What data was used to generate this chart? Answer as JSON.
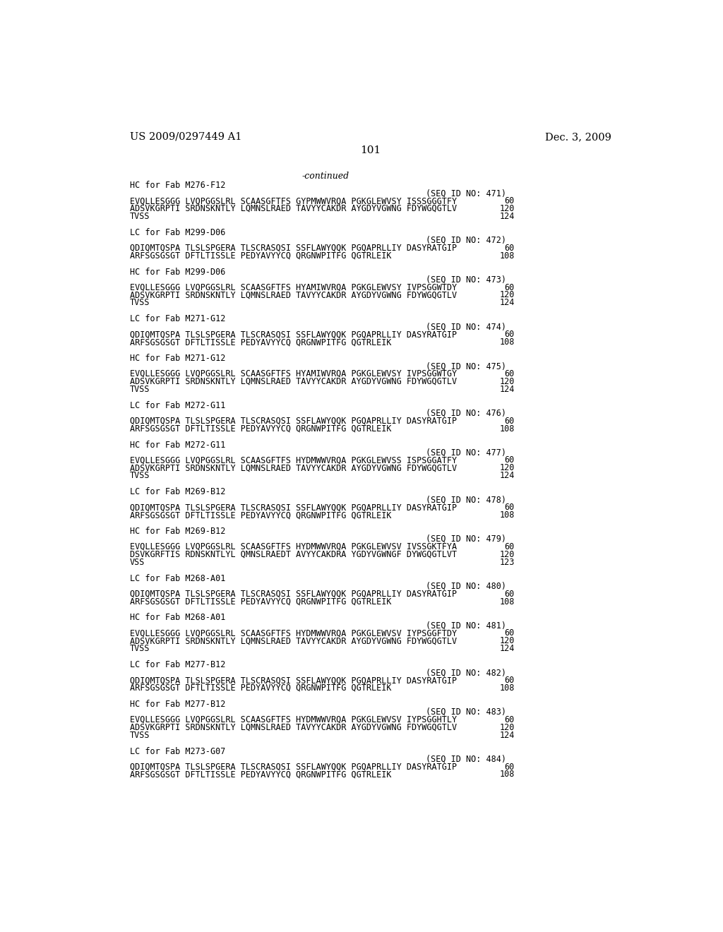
{
  "background_color": "#ffffff",
  "header_left": "US 2009/0297449 A1",
  "header_right": "Dec. 3, 2009",
  "page_number": "101",
  "continued_text": "-continued",
  "lines": [
    {
      "type": "section",
      "text": "HC for Fab M276-F12"
    },
    {
      "type": "seqid",
      "text": "(SEQ ID NO: 471)"
    },
    {
      "type": "seq",
      "text": "EVQLLESGGG LVQPGGSLRL SCAASGFTFS GYPMWWVRQA PGKGLEWVSY ISSSGGGTFY",
      "num": "60"
    },
    {
      "type": "seq",
      "text": "ADSVKGRPTI SRDNSKNTLY LQMNSLRAED TAVYYCAKDR AYGDYVGWNG FDYWGQGTLV",
      "num": "120"
    },
    {
      "type": "seq",
      "text": "TVSS",
      "num": "124"
    },
    {
      "type": "blank"
    },
    {
      "type": "section",
      "text": "LC for Fab M299-D06"
    },
    {
      "type": "seqid",
      "text": "(SEQ ID NO: 472)"
    },
    {
      "type": "seq",
      "text": "QDIQMTQSPA TLSLSPGERA TLSCRASQSI SSFLAWYQQK PGQAPRLLIY DASYRATGIP",
      "num": "60"
    },
    {
      "type": "seq",
      "text": "ARFSGSGSGT DFTLTISSLE PEDYAVYYCQ QRGNWPITFG QGTRLEIK",
      "num": "108"
    },
    {
      "type": "blank"
    },
    {
      "type": "section",
      "text": "HC for Fab M299-D06"
    },
    {
      "type": "seqid",
      "text": "(SEQ ID NO: 473)"
    },
    {
      "type": "seq",
      "text": "EVQLLESGGG LVQPGGSLRL SCAASGFTFS HYAMIWVRQA PGKGLEWVSY IVPSGGWTDY",
      "num": "60"
    },
    {
      "type": "seq",
      "text": "ADSVKGRPTI SRDNSKNTLY LQMNSLRAED TAVYYCAKDR AYGDYVGWNG FDYWGQGTLV",
      "num": "120"
    },
    {
      "type": "seq",
      "text": "TVSS",
      "num": "124"
    },
    {
      "type": "blank"
    },
    {
      "type": "section",
      "text": "LC for Fab M271-G12"
    },
    {
      "type": "seqid",
      "text": "(SEQ ID NO: 474)"
    },
    {
      "type": "seq",
      "text": "QDIQMTQSPA TLSLSPGERA TLSCRASQSI SSFLAWYQQK PGQAPRLLIY DASYRATGIP",
      "num": "60"
    },
    {
      "type": "seq",
      "text": "ARFSGSGSGT DFTLTISSLE PEDYAVYYCQ QRGNWPITFG QGTRLEIK",
      "num": "108"
    },
    {
      "type": "blank"
    },
    {
      "type": "section",
      "text": "HC for Fab M271-G12"
    },
    {
      "type": "seqid",
      "text": "(SEQ ID NO: 475)"
    },
    {
      "type": "seq",
      "text": "EVQLLESGGG LVQPGGSLRL SCAASGFTFS HYAMIWVRQA PGKGLEWVSY IVPSGGWTGY",
      "num": "60"
    },
    {
      "type": "seq",
      "text": "ADSVKGRPTI SRDNSKNTLY LQMNSLRAED TAVYYCAKDR AYGDYVGWNG FDYWGQGTLV",
      "num": "120"
    },
    {
      "type": "seq",
      "text": "TVSS",
      "num": "124"
    },
    {
      "type": "blank"
    },
    {
      "type": "section",
      "text": "LC for Fab M272-G11"
    },
    {
      "type": "seqid",
      "text": "(SEQ ID NO: 476)"
    },
    {
      "type": "seq",
      "text": "QDIQMTQSPA TLSLSPGERA TLSCRASQSI SSFLAWYQQK PGQAPRLLIY DASYRATGIP",
      "num": "60"
    },
    {
      "type": "seq",
      "text": "ARFSGSGSGT DFTLTISSLE PEDYAVYYCQ QRGNWPITFG QGTRLEIK",
      "num": "108"
    },
    {
      "type": "blank"
    },
    {
      "type": "section",
      "text": "HC for Fab M272-G11"
    },
    {
      "type": "seqid",
      "text": "(SEQ ID NO: 477)"
    },
    {
      "type": "seq",
      "text": "EVQLLESGGG LVQPGGSLRL SCAASGFTFS HYDMWWVRQA PGKGLEWVSS ISPSGGATFY",
      "num": "60"
    },
    {
      "type": "seq",
      "text": "ADSVKGRPTI SRDNSKNTLY LQMNSLRAED TAVYYCAKDR AYGDYVGWNG FDYWGQGTLV",
      "num": "120"
    },
    {
      "type": "seq",
      "text": "TVSS",
      "num": "124"
    },
    {
      "type": "blank"
    },
    {
      "type": "section",
      "text": "LC for Fab M269-B12"
    },
    {
      "type": "seqid",
      "text": "(SEQ ID NO: 478)"
    },
    {
      "type": "seq",
      "text": "QDIQMTQSPA TLSLSPGERA TLSCRASQSI SSFLAWYQQK PGQAPRLLIY DASYRATGIP",
      "num": "60"
    },
    {
      "type": "seq",
      "text": "ARFSGSGSGT DFTLTISSLE PEDYAVYYCQ QRGNWPITFG QGTRLEIK",
      "num": "108"
    },
    {
      "type": "blank"
    },
    {
      "type": "section",
      "text": "HC for Fab M269-B12"
    },
    {
      "type": "seqid",
      "text": "(SEQ ID NO: 479)"
    },
    {
      "type": "seq",
      "text": "EVQLLESGGG LVQPGGSLRL SCAASGFTFS HYDMWWVRQA PGKGLEWVSV IVSSGKTFYA",
      "num": "60"
    },
    {
      "type": "seq",
      "text": "DSVKGRFTIS RDNSKNTLYL QMNSLRAEDT AVYYCAKDRA YGDYVGWNGF DYWGQGTLVT",
      "num": "120"
    },
    {
      "type": "seq",
      "text": "VSS",
      "num": "123"
    },
    {
      "type": "blank"
    },
    {
      "type": "section",
      "text": "LC for Fab M268-A01"
    },
    {
      "type": "seqid",
      "text": "(SEQ ID NO: 480)"
    },
    {
      "type": "seq",
      "text": "QDIQMTQSPA TLSLSPGERA TLSCRASQSI SSFLAWYQQK PGQAPRLLIY DASYRATGIP",
      "num": "60"
    },
    {
      "type": "seq",
      "text": "ARFSGSGSGT DFTLTISSLE PEDYAVYYCQ QRGNWPITFG QGTRLEIK",
      "num": "108"
    },
    {
      "type": "blank"
    },
    {
      "type": "section",
      "text": "HC for Fab M268-A01"
    },
    {
      "type": "seqid",
      "text": "(SEQ ID NO: 481)"
    },
    {
      "type": "seq",
      "text": "EVQLLESGGG LVQPGGSLRL SCAASGFTFS HYDMWWVRQA PGKGLEWVSV IYPSGGFTDY",
      "num": "60"
    },
    {
      "type": "seq",
      "text": "ADSVKGRPTI SRDNSKNTLY LQMNSLRAED TAVYYCAKDR AYGDYVGWNG FDYWGQGTLV",
      "num": "120"
    },
    {
      "type": "seq",
      "text": "TVSS",
      "num": "124"
    },
    {
      "type": "blank"
    },
    {
      "type": "section",
      "text": "LC for Fab M277-B12"
    },
    {
      "type": "seqid",
      "text": "(SEQ ID NO: 482)"
    },
    {
      "type": "seq",
      "text": "QDIQMTQSPA TLSLSPGERA TLSCRASQSI SSFLAWYQQK PGQAPRLLIY DASYRATGIP",
      "num": "60"
    },
    {
      "type": "seq",
      "text": "ARFSGSGSGT DFTLTISSLE PEDYAVYYCQ QRGNWPITFG QGTRLEIK",
      "num": "108"
    },
    {
      "type": "blank"
    },
    {
      "type": "section",
      "text": "HC for Fab M277-B12"
    },
    {
      "type": "seqid",
      "text": "(SEQ ID NO: 483)"
    },
    {
      "type": "seq",
      "text": "EVQLLESGGG LVQPGGSLRL SCAASGFTFS HYDMWWVRQA PGKGLEWVSV IYPSGGHTLY",
      "num": "60"
    },
    {
      "type": "seq",
      "text": "ADSVKGRPTI SRDNSKNTLY LQMNSLRAED TAVYYCAKDR AYGDYVGWNG FDYWGQGTLV",
      "num": "120"
    },
    {
      "type": "seq",
      "text": "TVSS",
      "num": "124"
    },
    {
      "type": "blank"
    },
    {
      "type": "section",
      "text": "LC for Fab M273-G07"
    },
    {
      "type": "seqid",
      "text": "(SEQ ID NO: 484)"
    },
    {
      "type": "seq",
      "text": "QDIQMTQSPA TLSLSPGERA TLSCRASQSI SSFLAWYQQK PGQAPRLLIY DASYRATGIP",
      "num": "60"
    },
    {
      "type": "seq",
      "text": "ARFSGSGSGT DFTLTISSLE PEDYAVYYCQ QRGNWPITFG QGTRLEIK",
      "num": "108"
    }
  ]
}
